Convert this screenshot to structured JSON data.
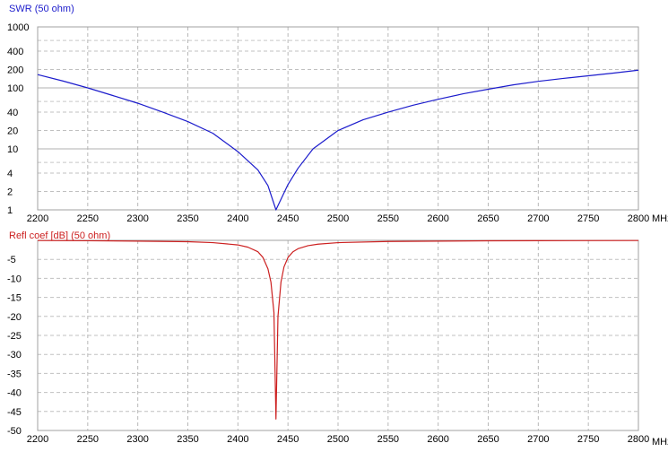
{
  "chart_data": [
    {
      "type": "line",
      "title": "SWR (50 ohm)",
      "x_unit": "MHz",
      "xlim": [
        2200,
        2800
      ],
      "x_ticks": [
        2200,
        2250,
        2300,
        2350,
        2400,
        2450,
        2500,
        2550,
        2600,
        2650,
        2700,
        2750,
        2800
      ],
      "x_tick_labels": [
        "2200",
        "2250",
        "2300",
        "2350",
        "2400",
        "2450",
        "2500",
        "2550",
        "2600",
        "2650",
        "2700",
        "2750",
        "2800"
      ],
      "y_scale": "log",
      "ylim": [
        1,
        1000
      ],
      "y_ticks": [
        1,
        2,
        4,
        10,
        20,
        40,
        100,
        200,
        400,
        1000
      ],
      "y_tick_labels": [
        "1",
        "2",
        "4",
        "10",
        "20",
        "40",
        "100",
        "200",
        "400",
        "1000"
      ],
      "grid": true,
      "series": [
        {
          "color": "#1c1ccc",
          "x": [
            2200,
            2225,
            2250,
            2275,
            2300,
            2325,
            2350,
            2375,
            2400,
            2420,
            2430,
            2438,
            2450,
            2460,
            2475,
            2500,
            2525,
            2550,
            2575,
            2600,
            2625,
            2650,
            2675,
            2700,
            2725,
            2750,
            2775,
            2800
          ],
          "y": [
            165,
            130,
            100,
            75,
            56,
            40,
            28,
            18,
            9,
            4.5,
            2.5,
            1,
            2.6,
            4.8,
            10,
            20,
            30,
            40,
            52,
            65,
            80,
            95,
            112,
            128,
            143,
            158,
            175,
            195
          ]
        }
      ]
    },
    {
      "type": "line",
      "title": "Refl coef [dB] (50 ohm)",
      "x_unit": "MHz",
      "xlim": [
        2200,
        2800
      ],
      "x_ticks": [
        2200,
        2250,
        2300,
        2350,
        2400,
        2450,
        2500,
        2550,
        2600,
        2650,
        2700,
        2750,
        2800
      ],
      "x_tick_labels": [
        "2200",
        "2250",
        "2300",
        "2350",
        "2400",
        "2450",
        "2500",
        "2550",
        "2600",
        "2650",
        "2700",
        "2750",
        "2800"
      ],
      "y_scale": "linear",
      "ylim": [
        -50,
        0
      ],
      "y_ticks": [
        -5,
        -10,
        -15,
        -20,
        -25,
        -30,
        -35,
        -40,
        -45,
        -50
      ],
      "y_tick_labels": [
        "-5",
        "-10",
        "-15",
        "-20",
        "-25",
        "-30",
        "-35",
        "-40",
        "-45",
        "-50"
      ],
      "grid": true,
      "series": [
        {
          "color": "#cc2020",
          "x": [
            2200,
            2250,
            2300,
            2350,
            2375,
            2400,
            2410,
            2420,
            2425,
            2430,
            2433,
            2436,
            2438,
            2440,
            2443,
            2446,
            2450,
            2455,
            2460,
            2470,
            2480,
            2500,
            2550,
            2600,
            2650,
            2700,
            2800
          ],
          "y": [
            -0.05,
            -0.1,
            -0.2,
            -0.35,
            -0.6,
            -1.2,
            -1.8,
            -3.0,
            -4.5,
            -7.5,
            -11,
            -19,
            -47,
            -20,
            -11,
            -7,
            -4.5,
            -3.0,
            -2.2,
            -1.4,
            -1.0,
            -0.6,
            -0.3,
            -0.2,
            -0.12,
            -0.08,
            -0.05
          ]
        }
      ]
    }
  ]
}
